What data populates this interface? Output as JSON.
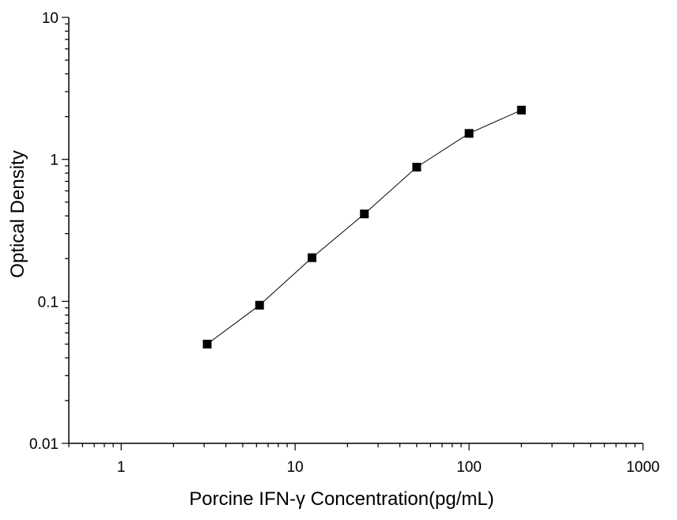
{
  "chart_data": {
    "type": "scatter",
    "xlabel": "Porcine IFN-γ Concentration(pg/mL)",
    "ylabel": "Optical  Density",
    "x_scale": "log",
    "y_scale": "log",
    "xlim": [
      0.5,
      1000
    ],
    "ylim": [
      0.01,
      10
    ],
    "x_tick_labels": [
      "1",
      "10",
      "100",
      "1000"
    ],
    "y_tick_labels": [
      "0.01",
      "0.1",
      "1",
      "10"
    ],
    "grid": false,
    "series": [
      {
        "x": [
          3.125,
          6.25,
          12.5,
          25,
          50,
          100,
          200
        ],
        "y": [
          0.05,
          0.094,
          0.203,
          0.413,
          0.882,
          1.524,
          2.223
        ]
      }
    ],
    "marker": "square",
    "line_color": "#000000",
    "marker_color": "#000000"
  }
}
